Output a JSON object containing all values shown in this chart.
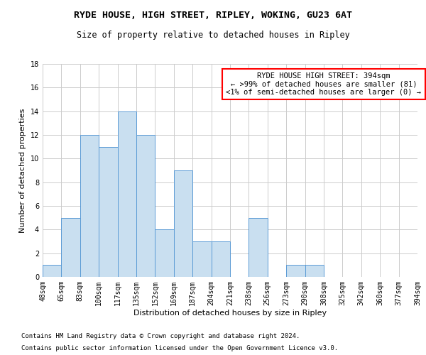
{
  "title": "RYDE HOUSE, HIGH STREET, RIPLEY, WOKING, GU23 6AT",
  "subtitle": "Size of property relative to detached houses in Ripley",
  "xlabel": "Distribution of detached houses by size in Ripley",
  "ylabel": "Number of detached properties",
  "bar_values": [
    1,
    5,
    12,
    11,
    14,
    12,
    4,
    9,
    3,
    3,
    0,
    5,
    0,
    1,
    1,
    0,
    0,
    0,
    0,
    0
  ],
  "bin_labels": [
    "48sqm",
    "65sqm",
    "83sqm",
    "100sqm",
    "117sqm",
    "135sqm",
    "152sqm",
    "169sqm",
    "187sqm",
    "204sqm",
    "221sqm",
    "238sqm",
    "256sqm",
    "273sqm",
    "290sqm",
    "308sqm",
    "325sqm",
    "342sqm",
    "360sqm",
    "377sqm",
    "394sqm"
  ],
  "bar_color": "#c9dff0",
  "bar_edge_color": "#5b9bd5",
  "highlight_box_color": "#ff0000",
  "annotation_title": "RYDE HOUSE HIGH STREET: 394sqm",
  "annotation_line1": "← >99% of detached houses are smaller (81)",
  "annotation_line2": "<1% of semi-detached houses are larger (0) →",
  "ylim": [
    0,
    18
  ],
  "yticks": [
    0,
    2,
    4,
    6,
    8,
    10,
    12,
    14,
    16,
    18
  ],
  "footer_line1": "Contains HM Land Registry data © Crown copyright and database right 2024.",
  "footer_line2": "Contains public sector information licensed under the Open Government Licence v3.0.",
  "background_color": "#ffffff",
  "grid_color": "#cccccc",
  "title_fontsize": 9.5,
  "subtitle_fontsize": 8.5,
  "axis_label_fontsize": 8,
  "tick_fontsize": 7,
  "annotation_fontsize": 7.5,
  "footer_fontsize": 6.5
}
